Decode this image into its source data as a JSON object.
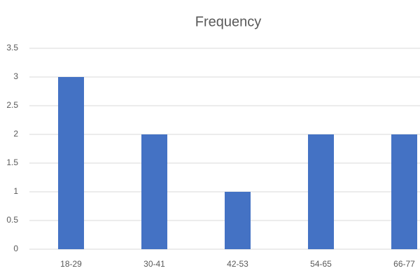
{
  "chart_data": {
    "type": "bar",
    "title": "Frequency",
    "categories": [
      "18-29",
      "30-41",
      "42-53",
      "54-65",
      "66-77"
    ],
    "values": [
      3,
      2,
      1,
      2,
      2
    ],
    "color": "#4472c4",
    "ylim": [
      0,
      3.5
    ],
    "yticks": [
      0,
      0.5,
      1,
      1.5,
      2,
      2.5,
      3,
      3.5
    ],
    "grid": true
  }
}
